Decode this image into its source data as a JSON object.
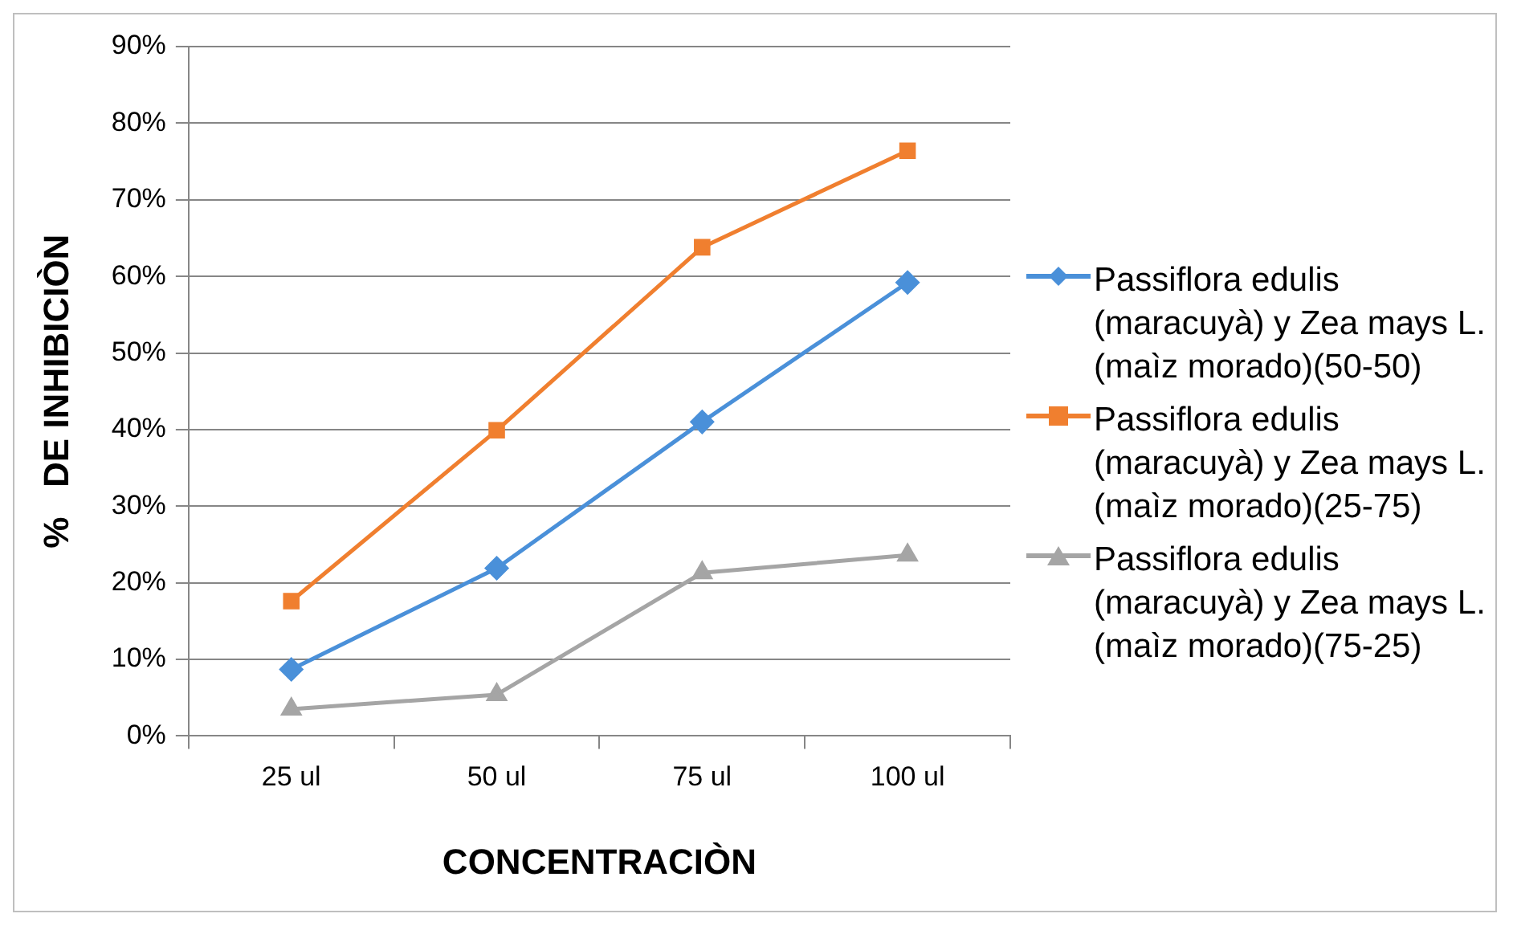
{
  "chart_data": {
    "type": "line",
    "xlabel": "CONCENTRACIÒN",
    "ylabel": "%   DE INHIBICIÒN",
    "categories": [
      "25 ul",
      "50 ul",
      "75 ul",
      "100 ul"
    ],
    "series": [
      {
        "name": "Passiflora edulis (maracuyà) y Zea mays L. (maìz morado)(50-50)",
        "color": "#4a90d9",
        "marker": "diamond",
        "values": [
          8.7,
          21.9,
          41.0,
          59.2
        ]
      },
      {
        "name": "Passiflora edulis (maracuyà) y Zea mays L. (maìz morado)(25-75)",
        "color": "#f07f2f",
        "marker": "square",
        "values": [
          17.6,
          39.9,
          63.8,
          76.4
        ]
      },
      {
        "name": "Passiflora edulis (maracuyà) y Zea mays L. (maìz morado)(75-25)",
        "color": "#a5a5a5",
        "marker": "triangle",
        "values": [
          3.5,
          5.4,
          21.3,
          23.6
        ]
      }
    ],
    "ylim": [
      0,
      90
    ],
    "yticks": [
      {
        "value": 0,
        "label": "0%"
      },
      {
        "value": 10,
        "label": "10%"
      },
      {
        "value": 20,
        "label": "20%"
      },
      {
        "value": 30,
        "label": "30%"
      },
      {
        "value": 40,
        "label": "40%"
      },
      {
        "value": 50,
        "label": "50%"
      },
      {
        "value": 60,
        "label": "60%"
      },
      {
        "value": 70,
        "label": "70%"
      },
      {
        "value": 80,
        "label": "80%"
      },
      {
        "value": 90,
        "label": "90%"
      }
    ],
    "grid": "y",
    "legend": "right"
  }
}
